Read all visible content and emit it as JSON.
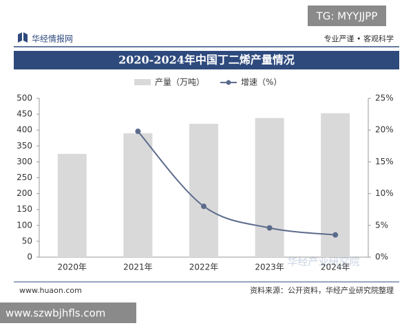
{
  "overlay_tag": "TG: MYYJJPP",
  "overlay_site": "www.szwbjhfls.com",
  "header": {
    "logo": "华经情报网",
    "slogan": "专业严谨 • 客观科学"
  },
  "watermark": "华经产业研究院",
  "footer": {
    "site": "www.huaon.com",
    "source": "资料来源：公开资料，华经产业研究院整理"
  },
  "chart_data": {
    "type": "combo",
    "title": "2020-2024年中国丁二烯产量情况",
    "categories": [
      "2020年",
      "2021年",
      "2022年",
      "2023年",
      "2024年"
    ],
    "series": [
      {
        "name": "产量（万吨）",
        "type": "bar",
        "axis": "y",
        "color": "#d9d9d9",
        "values": [
          325,
          390,
          420,
          438,
          453
        ]
      },
      {
        "name": "增速（%）",
        "type": "line",
        "axis": "y2",
        "color": "#5b6b8c",
        "values": [
          null,
          19.8,
          8,
          4.6,
          3.5
        ]
      }
    ],
    "ylim": [
      0,
      500
    ],
    "yticks": [
      0,
      50,
      100,
      150,
      200,
      250,
      300,
      350,
      400,
      450,
      500
    ],
    "y2lim": [
      0,
      25
    ],
    "y2ticks": [
      {
        "value": 0,
        "label": "0%"
      },
      {
        "value": 5,
        "label": "5%"
      },
      {
        "value": 10,
        "label": "10%"
      },
      {
        "value": 15,
        "label": "15%"
      },
      {
        "value": 20,
        "label": "20%"
      },
      {
        "value": 25,
        "label": "25%"
      }
    ],
    "legend": "top"
  }
}
